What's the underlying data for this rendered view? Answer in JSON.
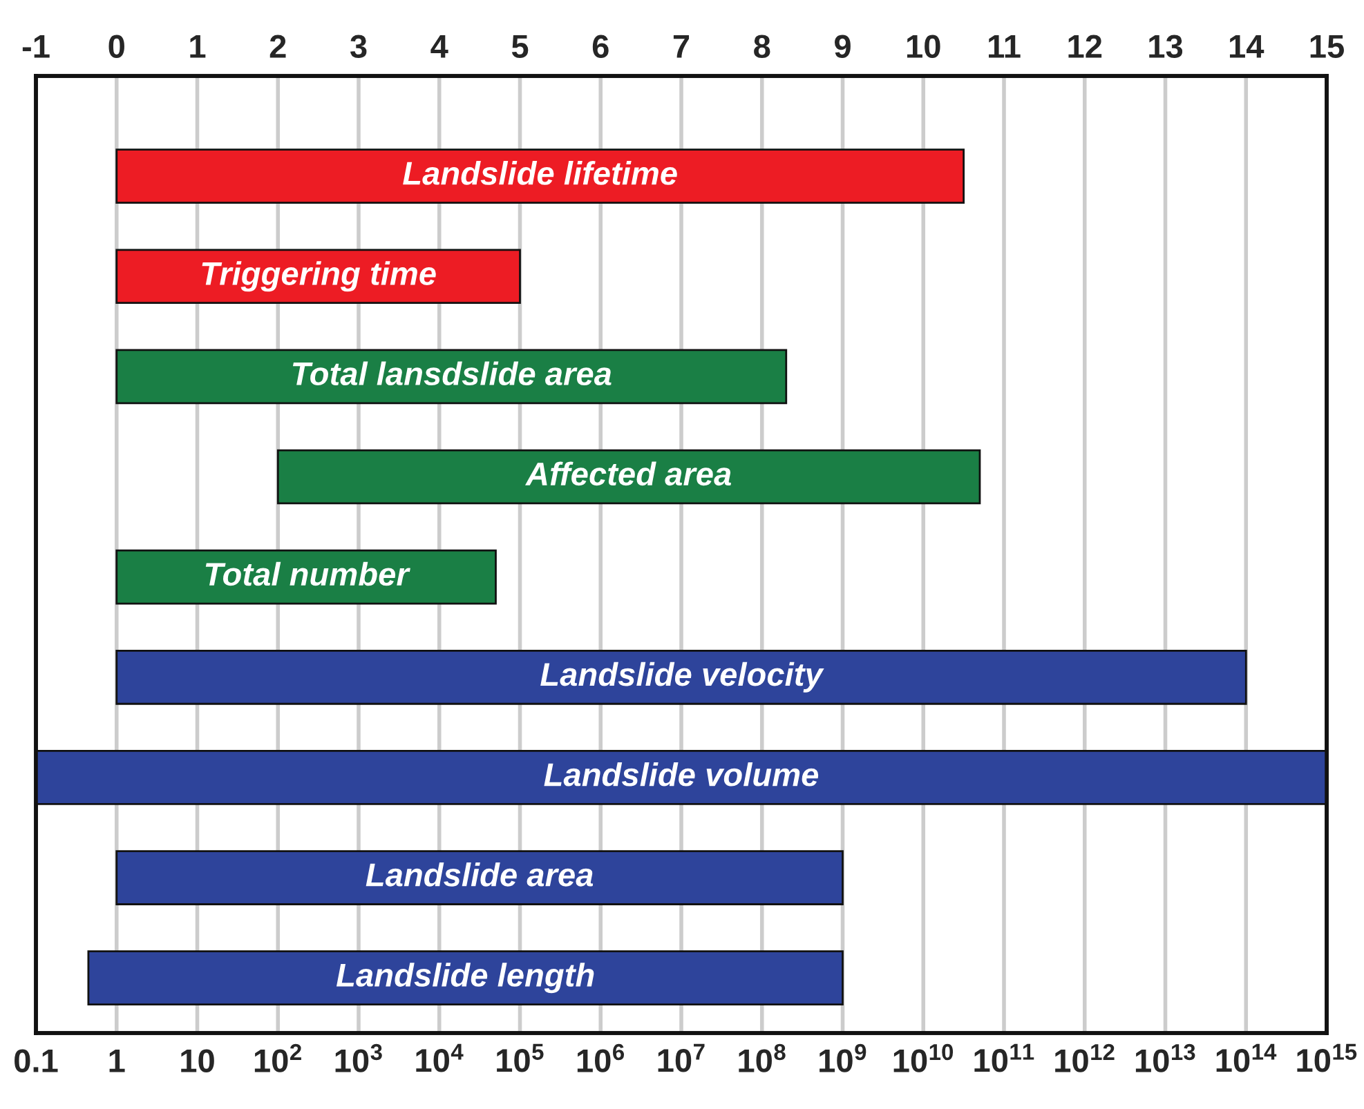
{
  "chart_data": {
    "type": "bar",
    "orientation": "horizontal",
    "categories": [
      "Landslide lifetime",
      "Triggering time",
      "Total lansdslide area",
      "Affected area",
      "Total number",
      "Landslide velocity",
      "Landslide volume",
      "Landslide area",
      "Landslide length"
    ],
    "base": [
      0,
      0,
      0,
      2,
      0,
      0,
      -1,
      0,
      -0.35
    ],
    "values": [
      10.5,
      5,
      8.3,
      8.7,
      4.7,
      14,
      16,
      9,
      9.35
    ],
    "colors": [
      "#ed1c24",
      "#ed1c24",
      "#1a7f45",
      "#1a7f45",
      "#1a7f45",
      "#2e449b",
      "#2e449b",
      "#2e449b",
      "#2e449b"
    ],
    "xlim": [
      -1,
      15
    ],
    "xticks": [
      -1,
      0,
      1,
      2,
      3,
      4,
      5,
      6,
      7,
      8,
      9,
      10,
      11,
      12,
      13,
      14,
      15
    ],
    "log": "x2",
    "x2lim": [
      0.1,
      1000000000000000
    ],
    "x2ticks": [
      0.1,
      1,
      10,
      {
        "value": 100,
        "label": "10$^{2}$"
      },
      {
        "value": 1000,
        "label": "10$^{3}$"
      },
      {
        "value": 10000,
        "label": "10$^{4}$"
      },
      {
        "value": 100000,
        "label": "10$^{5}$"
      },
      {
        "value": 1000000,
        "label": "10$^{6}$"
      },
      {
        "value": 10000000,
        "label": "10$^{7}$"
      },
      {
        "value": 100000000,
        "label": "10$^{8}$"
      },
      {
        "value": 1000000000,
        "label": "10$^{9}$"
      },
      {
        "value": 10000000000,
        "label": "10$^{10}$"
      },
      {
        "value": 100000000000,
        "label": "10$^{11}$"
      },
      {
        "value": 1000000000000,
        "label": "10$^{12}$"
      },
      {
        "value": 10000000000000,
        "label": "10$^{13}$"
      },
      {
        "value": 100000000000000,
        "label": "10$^{14}$"
      },
      {
        "value": 1000000000000000,
        "label": "10$^{15}$"
      }
    ],
    "grid": "x"
  }
}
